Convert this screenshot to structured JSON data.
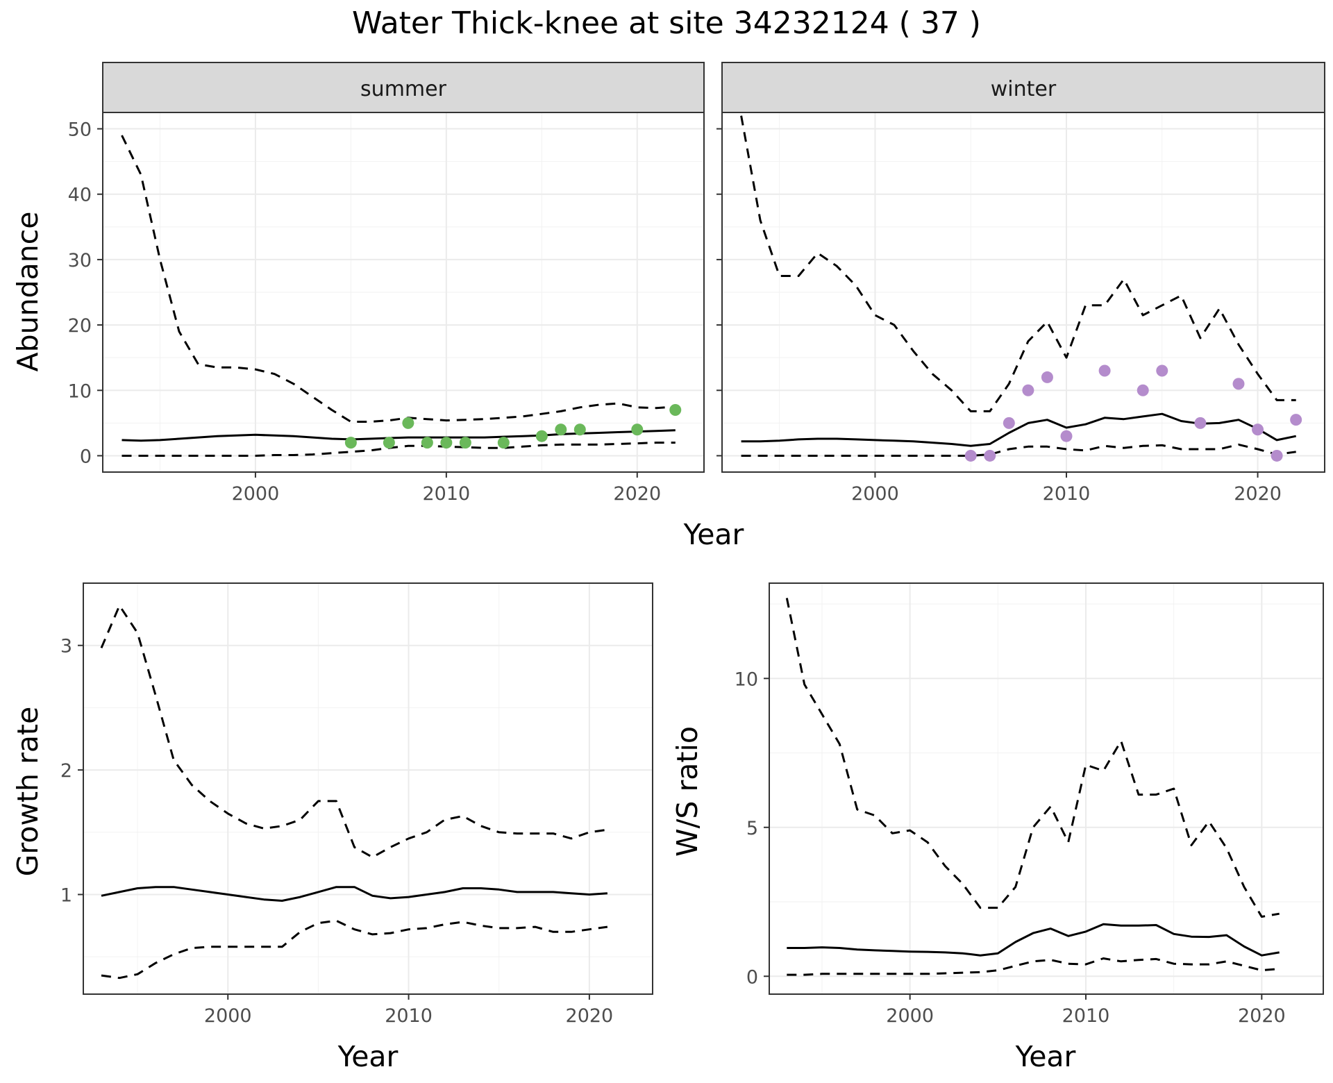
{
  "title": "Water Thick-knee at site 34232124 ( 37 )",
  "colors": {
    "summer_points": "#6ab85a",
    "winter_points": "#b48ccc",
    "lines": "#000000",
    "strip_bg": "#d9d9d9",
    "panel_border": "#333333",
    "grid": "#ebebeb"
  },
  "chart_data": [
    {
      "type": "line",
      "id": "abundance-summer",
      "facet": "summer",
      "xlabel": "Year",
      "ylabel": "Abundance",
      "xlim": [
        1992,
        2023.5
      ],
      "ylim": [
        -2.5,
        52.5
      ],
      "xticks": [
        2000,
        2010,
        2020
      ],
      "yticks": [
        0,
        10,
        20,
        30,
        40,
        50
      ],
      "x": [
        1993,
        1994,
        1995,
        1996,
        1997,
        1998,
        1999,
        2000,
        2001,
        2002,
        2003,
        2004,
        2005,
        2006,
        2007,
        2008,
        2009,
        2010,
        2011,
        2012,
        2013,
        2014,
        2015,
        2016,
        2017,
        2018,
        2019,
        2020,
        2021,
        2022
      ],
      "series": [
        {
          "role": "mean",
          "style": "solid",
          "values": [
            2.4,
            2.3,
            2.4,
            2.6,
            2.8,
            3.0,
            3.1,
            3.2,
            3.1,
            3.0,
            2.8,
            2.6,
            2.5,
            2.6,
            2.7,
            2.8,
            2.8,
            2.8,
            2.8,
            2.8,
            2.9,
            3.0,
            3.1,
            3.3,
            3.4,
            3.5,
            3.6,
            3.7,
            3.8,
            3.9
          ]
        },
        {
          "role": "upper",
          "style": "dashed",
          "values": [
            49,
            43,
            30,
            19,
            14,
            13.5,
            13.5,
            13.2,
            12.5,
            11,
            9,
            7,
            5.2,
            5.2,
            5.4,
            5.8,
            5.6,
            5.4,
            5.5,
            5.6,
            5.8,
            6.0,
            6.4,
            6.8,
            7.4,
            7.8,
            8.0,
            7.4,
            7.3,
            7.5
          ]
        },
        {
          "role": "lower",
          "style": "dashed",
          "values": [
            0,
            0,
            0,
            0,
            0,
            0,
            0,
            0,
            0.1,
            0.1,
            0.2,
            0.4,
            0.6,
            0.8,
            1.2,
            1.5,
            1.5,
            1.4,
            1.3,
            1.2,
            1.2,
            1.4,
            1.6,
            1.7,
            1.7,
            1.7,
            1.8,
            1.9,
            2.0,
            2.0
          ]
        },
        {
          "role": "observed",
          "style": "points",
          "x": [
            2005,
            2007,
            2008,
            2009,
            2010,
            2011,
            2013,
            2015,
            2016,
            2017,
            2020,
            2022
          ],
          "values": [
            2,
            2,
            5,
            2,
            2,
            2,
            2,
            3,
            4,
            4,
            4,
            7
          ]
        }
      ]
    },
    {
      "type": "line",
      "id": "abundance-winter",
      "facet": "winter",
      "xlabel": "Year",
      "ylabel": "Abundance",
      "xlim": [
        1992,
        2023.5
      ],
      "ylim": [
        -2.5,
        52.5
      ],
      "xticks": [
        2000,
        2010,
        2020
      ],
      "yticks": [
        0,
        10,
        20,
        30,
        40,
        50
      ],
      "x": [
        1993,
        1994,
        1995,
        1996,
        1997,
        1998,
        1999,
        2000,
        2001,
        2002,
        2003,
        2004,
        2005,
        2006,
        2007,
        2008,
        2009,
        2010,
        2011,
        2012,
        2013,
        2014,
        2015,
        2016,
        2017,
        2018,
        2019,
        2020,
        2021,
        2022
      ],
      "series": [
        {
          "role": "mean",
          "style": "solid",
          "values": [
            2.2,
            2.2,
            2.3,
            2.5,
            2.6,
            2.6,
            2.5,
            2.4,
            2.3,
            2.2,
            2.0,
            1.8,
            1.5,
            1.8,
            3.5,
            5.0,
            5.5,
            4.3,
            4.8,
            5.8,
            5.6,
            6.0,
            6.4,
            5.3,
            4.9,
            5.0,
            5.5,
            4.1,
            2.4,
            3.0
          ]
        },
        {
          "role": "upper",
          "style": "dashed",
          "values": [
            52,
            36,
            27.5,
            27.5,
            31,
            29,
            26,
            21.5,
            20,
            16,
            12.5,
            10,
            6.8,
            6.8,
            11,
            17.5,
            20.5,
            15,
            23,
            23,
            27,
            21.5,
            23,
            24.5,
            18,
            22.5,
            17,
            12.5,
            8.5,
            8.5
          ]
        },
        {
          "role": "lower",
          "style": "dashed",
          "values": [
            0,
            0,
            0,
            0,
            0,
            0,
            0,
            0,
            0,
            0,
            0,
            0,
            0,
            0.2,
            1.0,
            1.4,
            1.4,
            1.0,
            0.8,
            1.5,
            1.2,
            1.5,
            1.6,
            1.0,
            1.0,
            1.0,
            1.7,
            1.0,
            0.2,
            0.6
          ]
        },
        {
          "role": "observed",
          "style": "points",
          "x": [
            2005,
            2006,
            2007,
            2008,
            2009,
            2010,
            2012,
            2014,
            2015,
            2017,
            2019,
            2020,
            2021,
            2022
          ],
          "values": [
            0,
            0,
            5,
            10,
            12,
            3,
            13,
            10,
            13,
            5,
            11,
            4,
            0,
            5.5
          ]
        }
      ]
    },
    {
      "type": "line",
      "id": "growth-rate",
      "xlabel": "Year",
      "ylabel": "Growth rate",
      "xlim": [
        1992,
        2023.5
      ],
      "ylim": [
        0.2,
        3.5
      ],
      "xticks": [
        2000,
        2010,
        2020
      ],
      "yticks": [
        1,
        2,
        3
      ],
      "x": [
        1993,
        1994,
        1995,
        1996,
        1997,
        1998,
        1999,
        2000,
        2001,
        2002,
        2003,
        2004,
        2005,
        2006,
        2007,
        2008,
        2009,
        2010,
        2011,
        2012,
        2013,
        2014,
        2015,
        2016,
        2017,
        2018,
        2019,
        2020,
        2021
      ],
      "series": [
        {
          "role": "mean",
          "style": "solid",
          "values": [
            0.99,
            1.02,
            1.05,
            1.06,
            1.06,
            1.04,
            1.02,
            1.0,
            0.98,
            0.96,
            0.95,
            0.98,
            1.02,
            1.06,
            1.06,
            0.99,
            0.97,
            0.98,
            1.0,
            1.02,
            1.05,
            1.05,
            1.04,
            1.02,
            1.02,
            1.02,
            1.01,
            1.0,
            1.01
          ]
        },
        {
          "role": "upper",
          "style": "dashed",
          "values": [
            2.98,
            3.32,
            3.1,
            2.6,
            2.08,
            1.88,
            1.75,
            1.65,
            1.57,
            1.53,
            1.55,
            1.6,
            1.75,
            1.75,
            1.38,
            1.3,
            1.38,
            1.45,
            1.5,
            1.6,
            1.63,
            1.55,
            1.5,
            1.49,
            1.49,
            1.49,
            1.45,
            1.5,
            1.52
          ]
        },
        {
          "role": "lower",
          "style": "dashed",
          "values": [
            0.35,
            0.33,
            0.36,
            0.45,
            0.52,
            0.57,
            0.58,
            0.58,
            0.58,
            0.58,
            0.58,
            0.7,
            0.77,
            0.79,
            0.72,
            0.68,
            0.69,
            0.72,
            0.73,
            0.76,
            0.78,
            0.75,
            0.73,
            0.73,
            0.74,
            0.7,
            0.7,
            0.72,
            0.74
          ]
        }
      ]
    },
    {
      "type": "line",
      "id": "ws-ratio",
      "xlabel": "Year",
      "ylabel": "W/S ratio",
      "xlim": [
        1992,
        2023.5
      ],
      "ylim": [
        -0.6,
        13.2
      ],
      "xticks": [
        2000,
        2010,
        2020
      ],
      "yticks": [
        0,
        5,
        10
      ],
      "x": [
        1993,
        1994,
        1995,
        1996,
        1997,
        1998,
        1999,
        2000,
        2001,
        2002,
        2003,
        2004,
        2005,
        2006,
        2007,
        2008,
        2009,
        2010,
        2011,
        2012,
        2013,
        2014,
        2015,
        2016,
        2017,
        2018,
        2019,
        2020,
        2021
      ],
      "series": [
        {
          "role": "mean",
          "style": "solid",
          "values": [
            0.95,
            0.95,
            0.97,
            0.95,
            0.9,
            0.87,
            0.85,
            0.83,
            0.82,
            0.8,
            0.77,
            0.7,
            0.77,
            1.15,
            1.45,
            1.6,
            1.35,
            1.5,
            1.75,
            1.7,
            1.7,
            1.72,
            1.42,
            1.33,
            1.32,
            1.38,
            1.0,
            0.7,
            0.8
          ]
        },
        {
          "role": "upper",
          "style": "dashed",
          "values": [
            12.7,
            9.8,
            8.8,
            7.8,
            5.6,
            5.4,
            4.8,
            4.9,
            4.5,
            3.7,
            3.1,
            2.3,
            2.3,
            3.0,
            5.0,
            5.7,
            4.5,
            7.1,
            6.9,
            7.9,
            6.1,
            6.1,
            6.3,
            4.4,
            5.2,
            4.3,
            3.0,
            2.0,
            2.1
          ]
        },
        {
          "role": "lower",
          "style": "dashed",
          "values": [
            0.05,
            0.05,
            0.08,
            0.08,
            0.08,
            0.08,
            0.08,
            0.08,
            0.08,
            0.1,
            0.12,
            0.14,
            0.2,
            0.35,
            0.5,
            0.55,
            0.42,
            0.4,
            0.6,
            0.5,
            0.55,
            0.58,
            0.42,
            0.4,
            0.4,
            0.5,
            0.35,
            0.2,
            0.25
          ]
        }
      ]
    }
  ]
}
